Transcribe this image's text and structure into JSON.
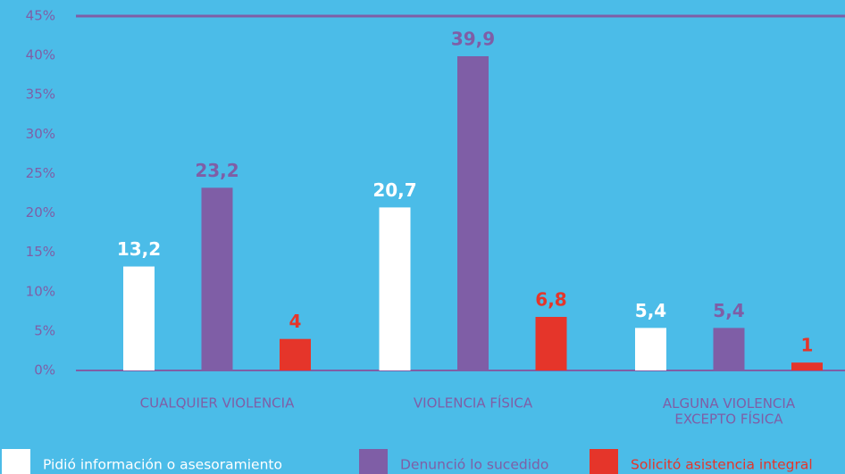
{
  "chart_data": {
    "type": "bar",
    "categories": [
      "CUALQUIER VIOLENCIA",
      "VIOLENCIA FÍSICA",
      "ALGUNA VIOLENCIA\nEXCEPTO FÍSICA"
    ],
    "series": [
      {
        "name": "Pidió información o asesoramiento",
        "color": "#ffffff",
        "values": [
          13.2,
          20.7,
          5.4
        ],
        "value_labels": [
          "13,2",
          "20,7",
          "5,4"
        ]
      },
      {
        "name": "Denunció lo sucedido",
        "color": "#7f5ea6",
        "values": [
          23.2,
          39.9,
          5.4
        ],
        "value_labels": [
          "23,2",
          "39,9",
          "5,4"
        ]
      },
      {
        "name": "Solicitó asistencia integral",
        "color": "#e5352a",
        "values": [
          4,
          6.8,
          1
        ],
        "value_labels": [
          "4",
          "6,8",
          "1"
        ]
      }
    ],
    "ylim": [
      0,
      45
    ],
    "yticks": [
      {
        "value": 0,
        "label": "0%"
      },
      {
        "value": 5,
        "label": "5%"
      },
      {
        "value": 10,
        "label": "10%"
      },
      {
        "value": 15,
        "label": "15%"
      },
      {
        "value": 20,
        "label": "20%"
      },
      {
        "value": 25,
        "label": "25%"
      },
      {
        "value": 30,
        "label": "30%"
      },
      {
        "value": 35,
        "label": "35%"
      },
      {
        "value": 40,
        "label": "40%"
      },
      {
        "value": 45,
        "label": "45%"
      }
    ],
    "grid": false,
    "legend": "bottom"
  }
}
